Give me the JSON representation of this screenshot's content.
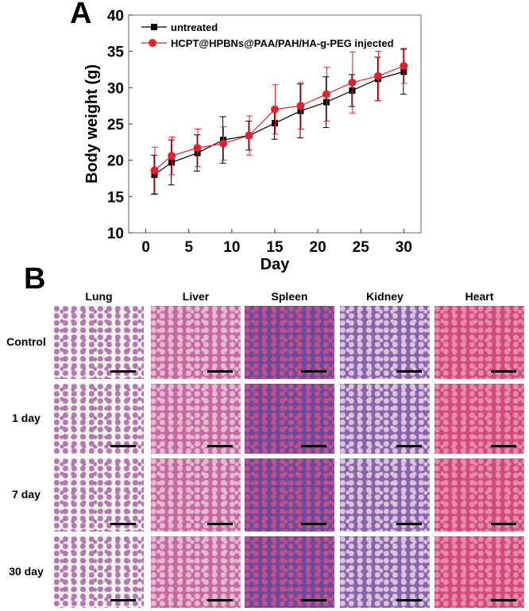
{
  "panels": {
    "a": "A",
    "b": "B"
  },
  "chart_data": {
    "type": "line",
    "title": "",
    "xlabel": "Day",
    "ylabel": "Body weight (g)",
    "xlim": [
      -2,
      32
    ],
    "ylim": [
      10,
      40
    ],
    "xticks": [
      0,
      5,
      10,
      15,
      20,
      25,
      30
    ],
    "yticks": [
      10,
      15,
      20,
      25,
      30,
      35,
      40
    ],
    "legend_position": "top-left",
    "x": [
      1,
      3,
      6,
      9,
      12,
      15,
      18,
      21,
      24,
      27,
      30
    ],
    "series": [
      {
        "name": "untreated",
        "color": "#000000",
        "marker": "square",
        "values": [
          18.0,
          19.7,
          21.0,
          22.8,
          23.4,
          25.1,
          26.8,
          28.0,
          29.6,
          31.2,
          32.2
        ],
        "errors": [
          2.7,
          3.1,
          2.5,
          3.2,
          2.0,
          2.2,
          3.7,
          3.5,
          2.2,
          3.0,
          3.1
        ]
      },
      {
        "name": "HCPT@HPBNs@PAA/PAH/HA-g-PEG injected",
        "color": "#e0202a",
        "marker": "circle",
        "values": [
          18.6,
          20.6,
          21.7,
          22.3,
          23.4,
          27.0,
          27.5,
          29.1,
          30.7,
          31.6,
          33.0
        ],
        "errors": [
          3.2,
          2.6,
          2.6,
          2.3,
          2.7,
          3.4,
          3.2,
          3.7,
          4.2,
          3.4,
          2.4
        ]
      }
    ]
  },
  "histology": {
    "columns": [
      "Lung",
      "Liver",
      "Spleen",
      "Kidney",
      "Heart"
    ],
    "rows": [
      "Control",
      "1 day",
      "7 day",
      "30 day"
    ]
  }
}
